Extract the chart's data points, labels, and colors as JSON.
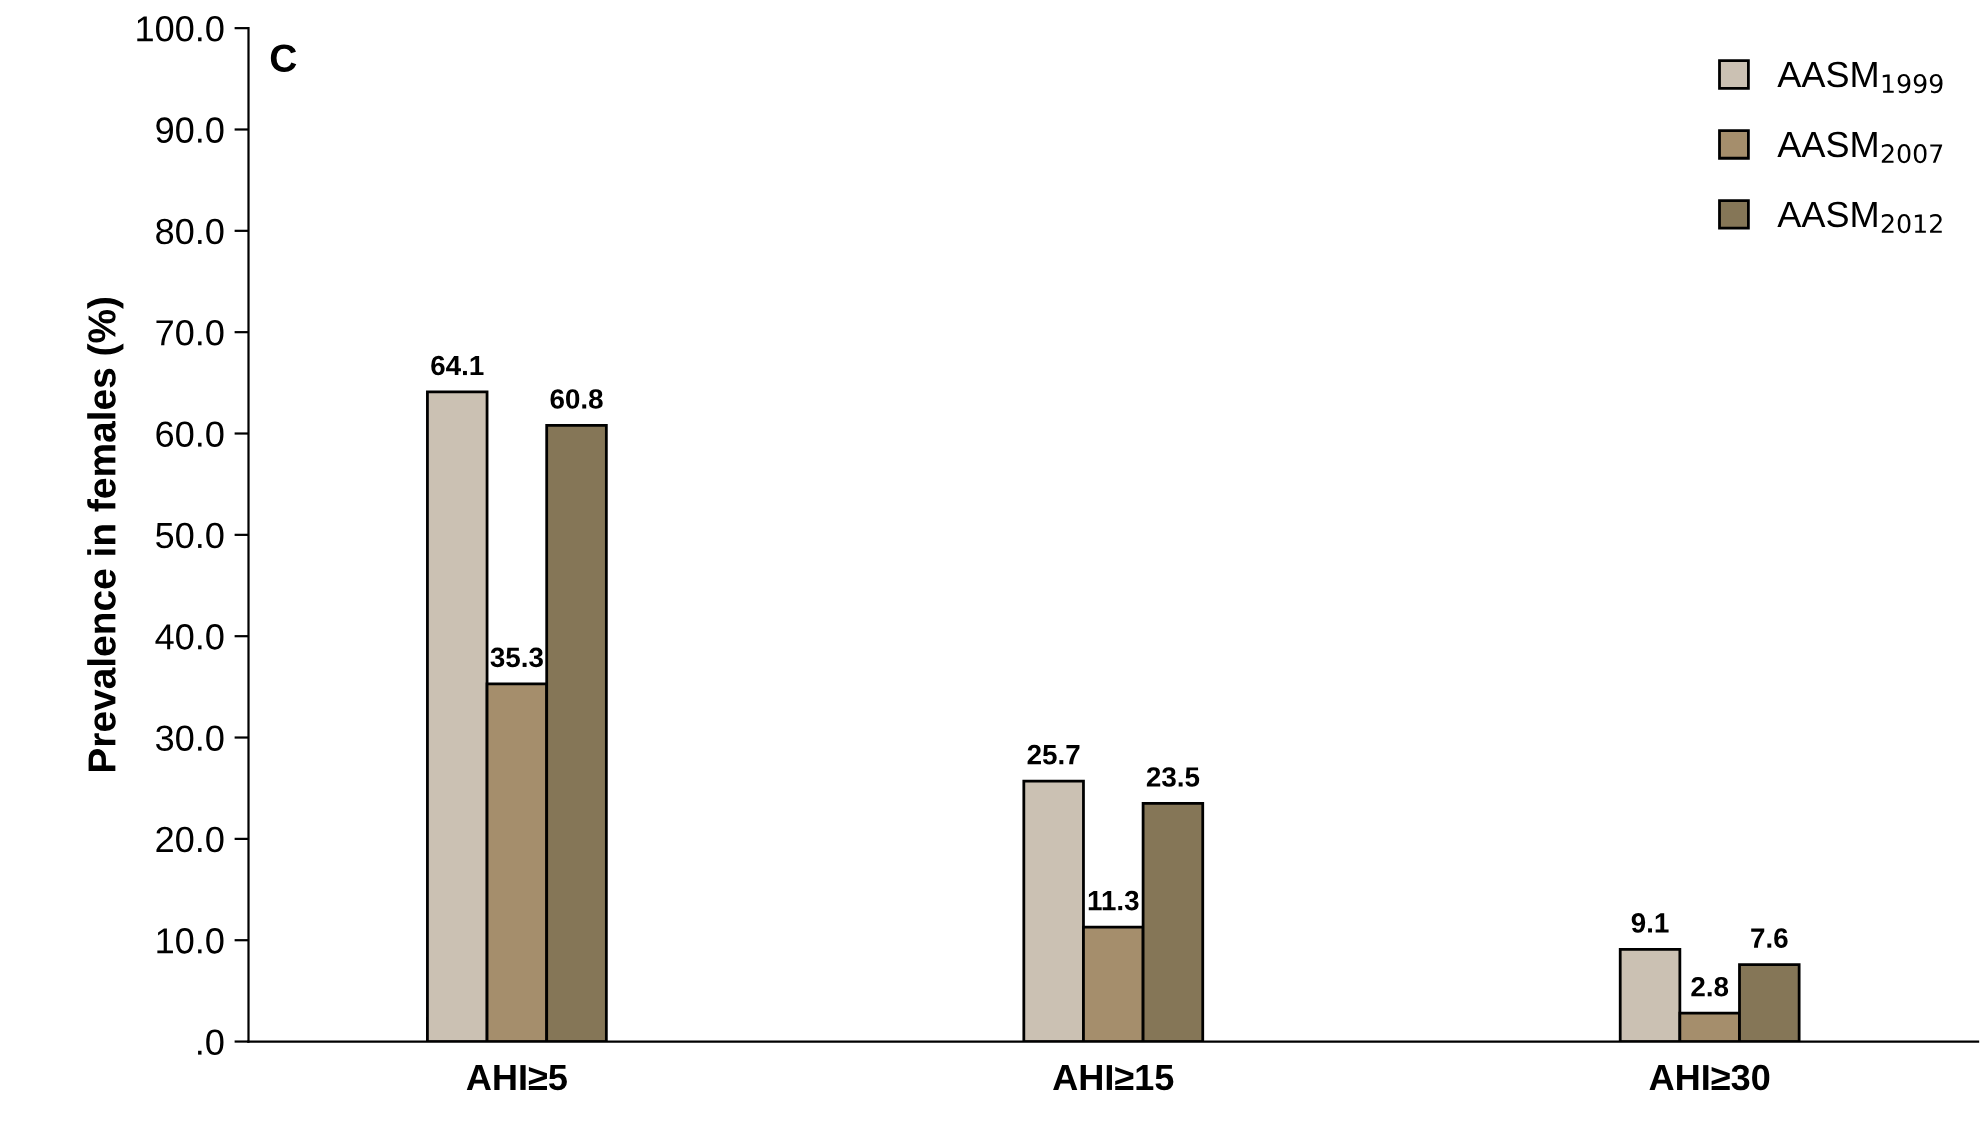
{
  "chart_data": {
    "type": "bar",
    "ylabel": "Prevalence in females (%)",
    "annotations": [
      "C"
    ],
    "categories": [
      "AHI≥5",
      "AHI≥15",
      "AHI≥30"
    ],
    "series": [
      {
        "name": "AASM$_{1999}$",
        "color": "#cbc1b3",
        "values": [
          64.1,
          25.7,
          9.1
        ]
      },
      {
        "name": "AASM$_{2007}$",
        "color": "#a58e6c",
        "values": [
          35.3,
          11.3,
          2.8
        ]
      },
      {
        "name": "AASM$_{2012}$",
        "color": "#857657",
        "values": [
          60.8,
          23.5,
          7.6
        ]
      }
    ],
    "ylim": [
      0,
      100
    ],
    "yticks": [
      {
        "value": 0,
        "label": ".0"
      },
      {
        "value": 10,
        "label": "10.0"
      },
      {
        "value": 20,
        "label": "20.0"
      },
      {
        "value": 30,
        "label": "30.0"
      },
      {
        "value": 40,
        "label": "40.0"
      },
      {
        "value": 50,
        "label": "50.0"
      },
      {
        "value": 60,
        "label": "60.0"
      },
      {
        "value": 70,
        "label": "70.0"
      },
      {
        "value": 80,
        "label": "80.0"
      },
      {
        "value": 90,
        "label": "90.0"
      },
      {
        "value": 100,
        "label": "100.0"
      }
    ],
    "data_labels": true,
    "legend": "top right",
    "grid": false
  }
}
